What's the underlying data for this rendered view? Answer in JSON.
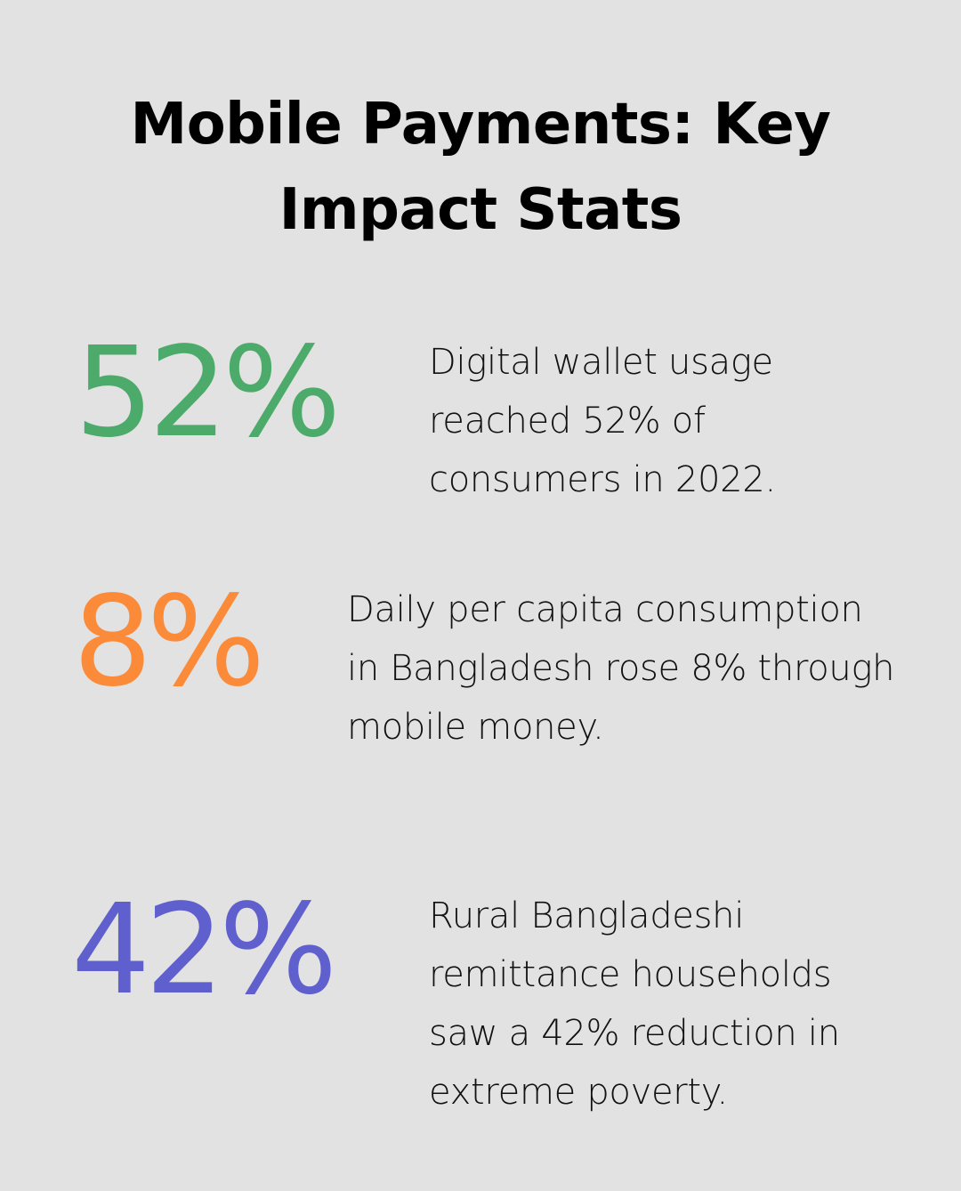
{
  "title": "Mobile Payments: Key Impact Stats",
  "stats": [
    {
      "value": "52%",
      "color": "#4caa6a",
      "description": "Digital wallet usage reached 52% of consumers in 2022."
    },
    {
      "value": "8%",
      "color": "#fb8a39",
      "description": "Daily per capita consumption in Bangladesh rose 8% through mobile money."
    },
    {
      "value": "42%",
      "color": "#5f5fce",
      "description": "Rural Bangladeshi remittance households saw a 42% reduction in extreme poverty."
    }
  ]
}
